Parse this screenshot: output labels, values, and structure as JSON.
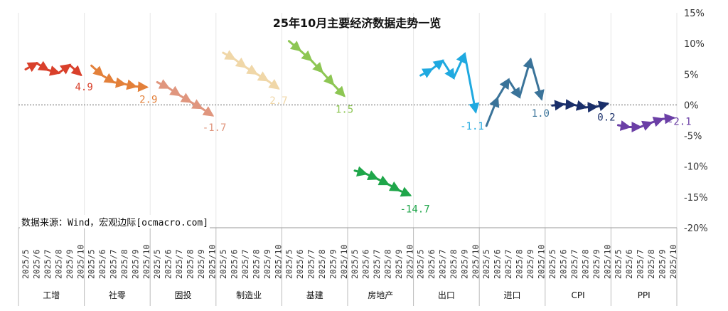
{
  "chart_data": {
    "type": "line",
    "title": "25年10月主要经济数据走势一览",
    "source": "数据来源：Wind，宏观边际[ocmacro.com]",
    "ylim": [
      -20,
      15
    ],
    "yticks": [
      "15%",
      "10%",
      "5%",
      "0%",
      "-5%",
      "-10%",
      "-15%",
      "-20%"
    ],
    "ytick_values": [
      15,
      10,
      5,
      0,
      -5,
      -10,
      -15,
      -20
    ],
    "x_per_group": [
      "2025/5",
      "2025/6",
      "2025/7",
      "2025/8",
      "2025/9",
      "2025/10"
    ],
    "series": [
      {
        "name": "工增",
        "color": "#d9402b",
        "values": [
          5.8,
          6.8,
          5.7,
          5.2,
          6.5,
          4.9
        ],
        "last_label": "4.9"
      },
      {
        "name": "社零",
        "color": "#e3803a",
        "values": [
          6.4,
          4.8,
          3.7,
          3.4,
          3.0,
          2.9
        ],
        "last_label": "2.9"
      },
      {
        "name": "固投",
        "color": "#e0967e",
        "values": [
          3.7,
          2.8,
          1.6,
          0.5,
          -0.5,
          -1.7
        ],
        "last_label": "-1.7"
      },
      {
        "name": "制造业",
        "color": "#f0d7a8",
        "values": [
          8.5,
          7.5,
          6.2,
          5.1,
          4.0,
          2.7
        ],
        "last_label": "2.7"
      },
      {
        "name": "基建",
        "color": "#8dc653",
        "values": [
          10.4,
          8.9,
          7.3,
          5.4,
          3.4,
          1.5
        ],
        "last_label": "1.5"
      },
      {
        "name": "房地产",
        "color": "#1fa64a",
        "values": [
          -10.7,
          -11.2,
          -12.0,
          -12.9,
          -13.9,
          -14.7
        ],
        "last_label": "-14.7"
      },
      {
        "name": "出口",
        "color": "#1fa9e0",
        "values": [
          4.8,
          5.8,
          7.2,
          4.4,
          8.3,
          -1.1
        ],
        "last_label": "-1.1"
      },
      {
        "name": "进口",
        "color": "#3a7399",
        "values": [
          -3.4,
          1.1,
          4.1,
          1.3,
          7.4,
          1.0
        ],
        "last_label": "1.0"
      },
      {
        "name": "CPI",
        "color": "#1a2f6a",
        "values": [
          -0.1,
          0.1,
          0.0,
          -0.4,
          -0.3,
          0.2
        ],
        "last_label": "0.2"
      },
      {
        "name": "PPI",
        "color": "#6b3fa6",
        "values": [
          -3.3,
          -3.6,
          -3.6,
          -2.9,
          -2.3,
          -2.1
        ],
        "last_label": "-2.1"
      }
    ],
    "grid": false,
    "zero_line": "dashed"
  }
}
